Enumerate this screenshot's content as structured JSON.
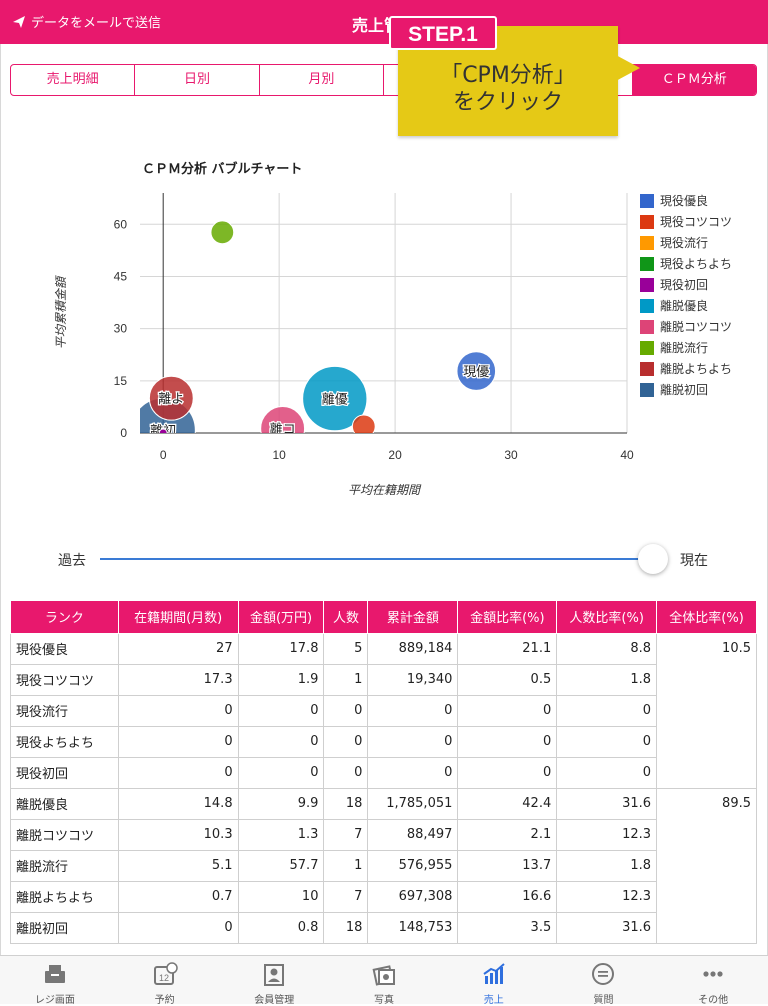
{
  "header": {
    "email_label": "データをメールで送信",
    "title": "売上管理"
  },
  "tabs": [
    {
      "label": "売上明細"
    },
    {
      "label": "日別"
    },
    {
      "label": "月別"
    },
    {
      "label": ""
    },
    {
      "label": ""
    },
    {
      "label": "ＣＰＭ分析"
    }
  ],
  "callout": {
    "step": "STEP.1",
    "line1": "「CPM分析」",
    "line2": "をクリック"
  },
  "chart_data": {
    "type": "scatter",
    "title": "ＣＰＭ分析 バブルチャート",
    "xlabel": "平均在籍期間",
    "ylabel": "平均累積金額",
    "xlim": [
      -2,
      40
    ],
    "ylim": [
      0,
      69
    ],
    "xticks": [
      0,
      10,
      20,
      30,
      40
    ],
    "yticks": [
      0,
      15,
      30,
      45,
      60
    ],
    "legend_position": "right",
    "series": [
      {
        "name": "現役優良",
        "color": "#3366cc",
        "x": 27,
        "y": 17.8,
        "count": 5,
        "label": "現優"
      },
      {
        "name": "現役コツコツ",
        "color": "#dc3912",
        "x": 17.3,
        "y": 1.9,
        "count": 1,
        "label": ""
      },
      {
        "name": "現役流行",
        "color": "#ff9900",
        "x": 0,
        "y": 0,
        "count": 0,
        "label": ""
      },
      {
        "name": "現役よちよち",
        "color": "#109618",
        "x": 0,
        "y": 0,
        "count": 0,
        "label": ""
      },
      {
        "name": "現役初回",
        "color": "#990099",
        "x": 0,
        "y": 0,
        "count": 0,
        "label": ""
      },
      {
        "name": "離脱優良",
        "color": "#0099c6",
        "x": 14.8,
        "y": 9.9,
        "count": 18,
        "label": "離優"
      },
      {
        "name": "離脱コツコツ",
        "color": "#dd4477",
        "x": 10.3,
        "y": 1.3,
        "count": 7,
        "label": "離コ"
      },
      {
        "name": "離脱流行",
        "color": "#66aa00",
        "x": 5.1,
        "y": 57.7,
        "count": 1,
        "label": ""
      },
      {
        "name": "離脱よちよち",
        "color": "#b82e2e",
        "x": 0.7,
        "y": 10,
        "count": 7,
        "label": "離よ"
      },
      {
        "name": "離脱初回",
        "color": "#316395",
        "x": 0,
        "y": 0.8,
        "count": 18,
        "label": "離初"
      }
    ]
  },
  "slider": {
    "past": "過去",
    "now": "現在",
    "value": 1.0
  },
  "table": {
    "headers": [
      "ランク",
      "在籍期間(月数)",
      "金額(万円)",
      "人数",
      "累計金額",
      "金額比率(%)",
      "人数比率(%)",
      "全体比率(%)"
    ],
    "rows": [
      [
        "現役優良",
        "27",
        "17.8",
        "5",
        "889,184",
        "21.1",
        "8.8"
      ],
      [
        "現役コツコツ",
        "17.3",
        "1.9",
        "1",
        "19,340",
        "0.5",
        "1.8"
      ],
      [
        "現役流行",
        "0",
        "0",
        "0",
        "0",
        "0",
        "0"
      ],
      [
        "現役よちよち",
        "0",
        "0",
        "0",
        "0",
        "0",
        "0"
      ],
      [
        "現役初回",
        "0",
        "0",
        "0",
        "0",
        "0",
        "0"
      ],
      [
        "離脱優良",
        "14.8",
        "9.9",
        "18",
        "1,785,051",
        "42.4",
        "31.6"
      ],
      [
        "離脱コツコツ",
        "10.3",
        "1.3",
        "7",
        "88,497",
        "2.1",
        "12.3"
      ],
      [
        "離脱流行",
        "5.1",
        "57.7",
        "1",
        "576,955",
        "13.7",
        "1.8"
      ],
      [
        "離脱よちよち",
        "0.7",
        "10",
        "7",
        "697,308",
        "16.6",
        "12.3"
      ],
      [
        "離脱初回",
        "0",
        "0.8",
        "18",
        "148,753",
        "3.5",
        "31.6"
      ]
    ],
    "totals": [
      "10.5",
      "89.5"
    ]
  },
  "tabbar": [
    {
      "label": "レジ画面",
      "icon": "register-icon"
    },
    {
      "label": "予約",
      "icon": "calendar-icon"
    },
    {
      "label": "会員管理",
      "icon": "member-icon"
    },
    {
      "label": "写真",
      "icon": "photo-icon"
    },
    {
      "label": "売上",
      "icon": "sales-chart-icon",
      "active": true
    },
    {
      "label": "質問",
      "icon": "question-icon"
    },
    {
      "label": "その他",
      "icon": "more-icon"
    }
  ],
  "colors": {
    "accent": "#e8186d",
    "callout": "#e5c916",
    "active_tab": "#2f6fde"
  }
}
